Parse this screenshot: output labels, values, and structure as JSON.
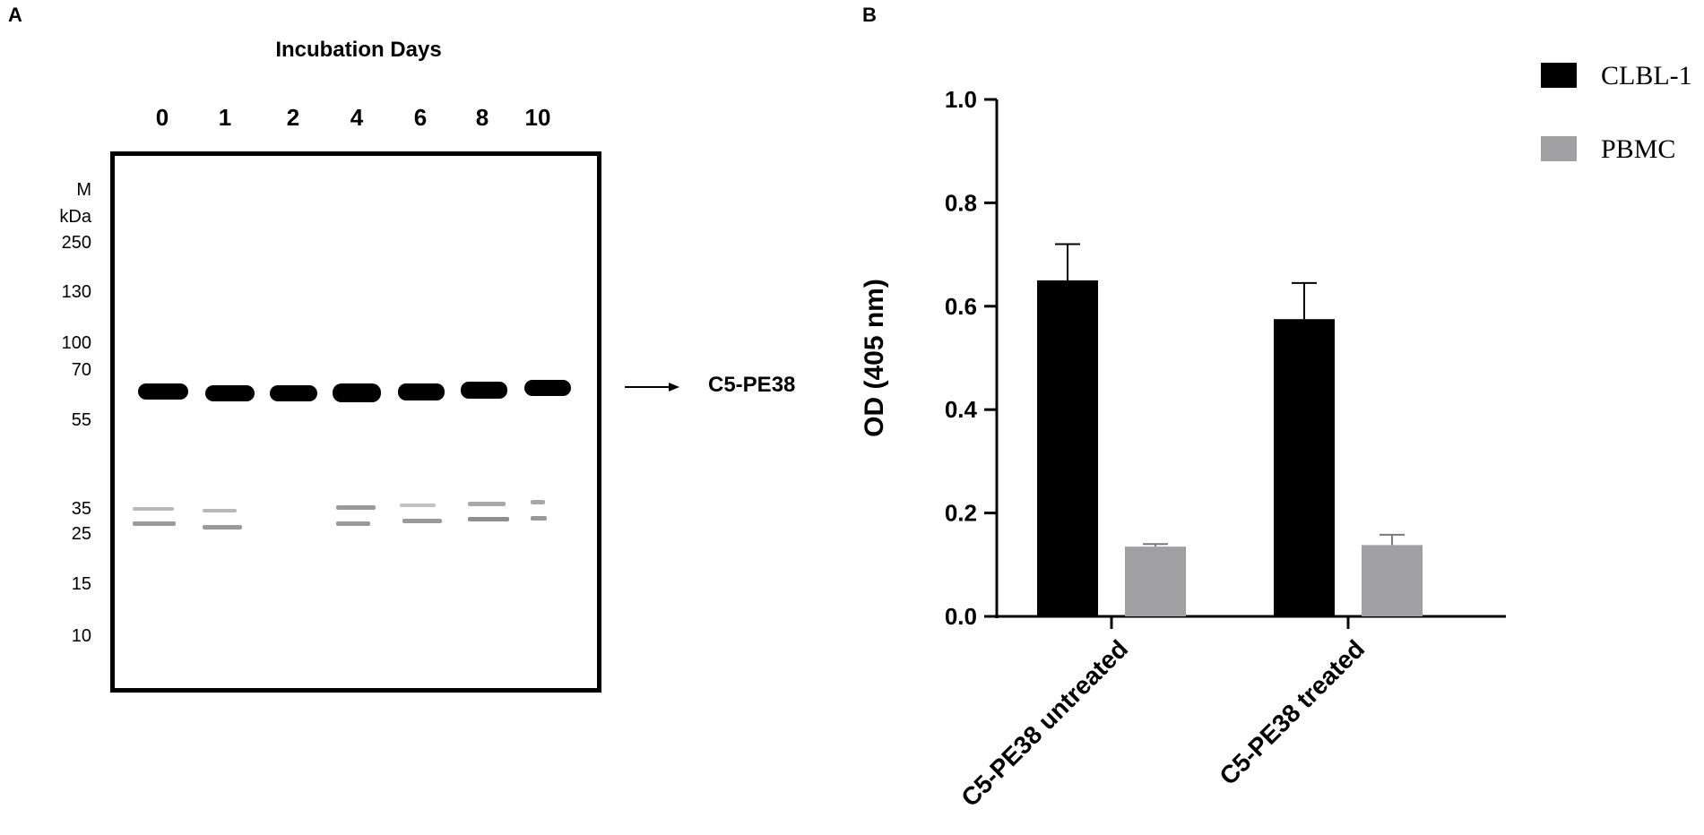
{
  "panel_a": {
    "letter": "A",
    "title": "Incubation Days",
    "lanes": [
      "0",
      "1",
      "2",
      "4",
      "6",
      "8",
      "10"
    ],
    "marker_header": [
      "M",
      "kDa"
    ],
    "markers": [
      "250",
      "130",
      "100",
      "70",
      "55",
      "35",
      "25",
      "15",
      "10"
    ],
    "band_label": "C5-PE38"
  },
  "panel_b": {
    "letter": "B"
  },
  "chart_data": {
    "type": "bar",
    "categories": [
      "C5-PE38 untreated",
      "C5-PE38 treated"
    ],
    "series": [
      {
        "name": "CLBL-1",
        "values": [
          0.65,
          0.575
        ],
        "errors": [
          0.07,
          0.07
        ],
        "color": "#000000"
      },
      {
        "name": "PBMC",
        "values": [
          0.135,
          0.138
        ],
        "errors": [
          0.005,
          0.02
        ],
        "color": "#a0a0a2"
      }
    ],
    "ylabel": "OD (405 nm)",
    "xlabel": "",
    "ylim": [
      0,
      1.0
    ],
    "yticks": [
      "0.0",
      "0.2",
      "0.4",
      "0.6",
      "0.8",
      "1.0"
    ],
    "legend_position": "top-right",
    "grid": false
  }
}
